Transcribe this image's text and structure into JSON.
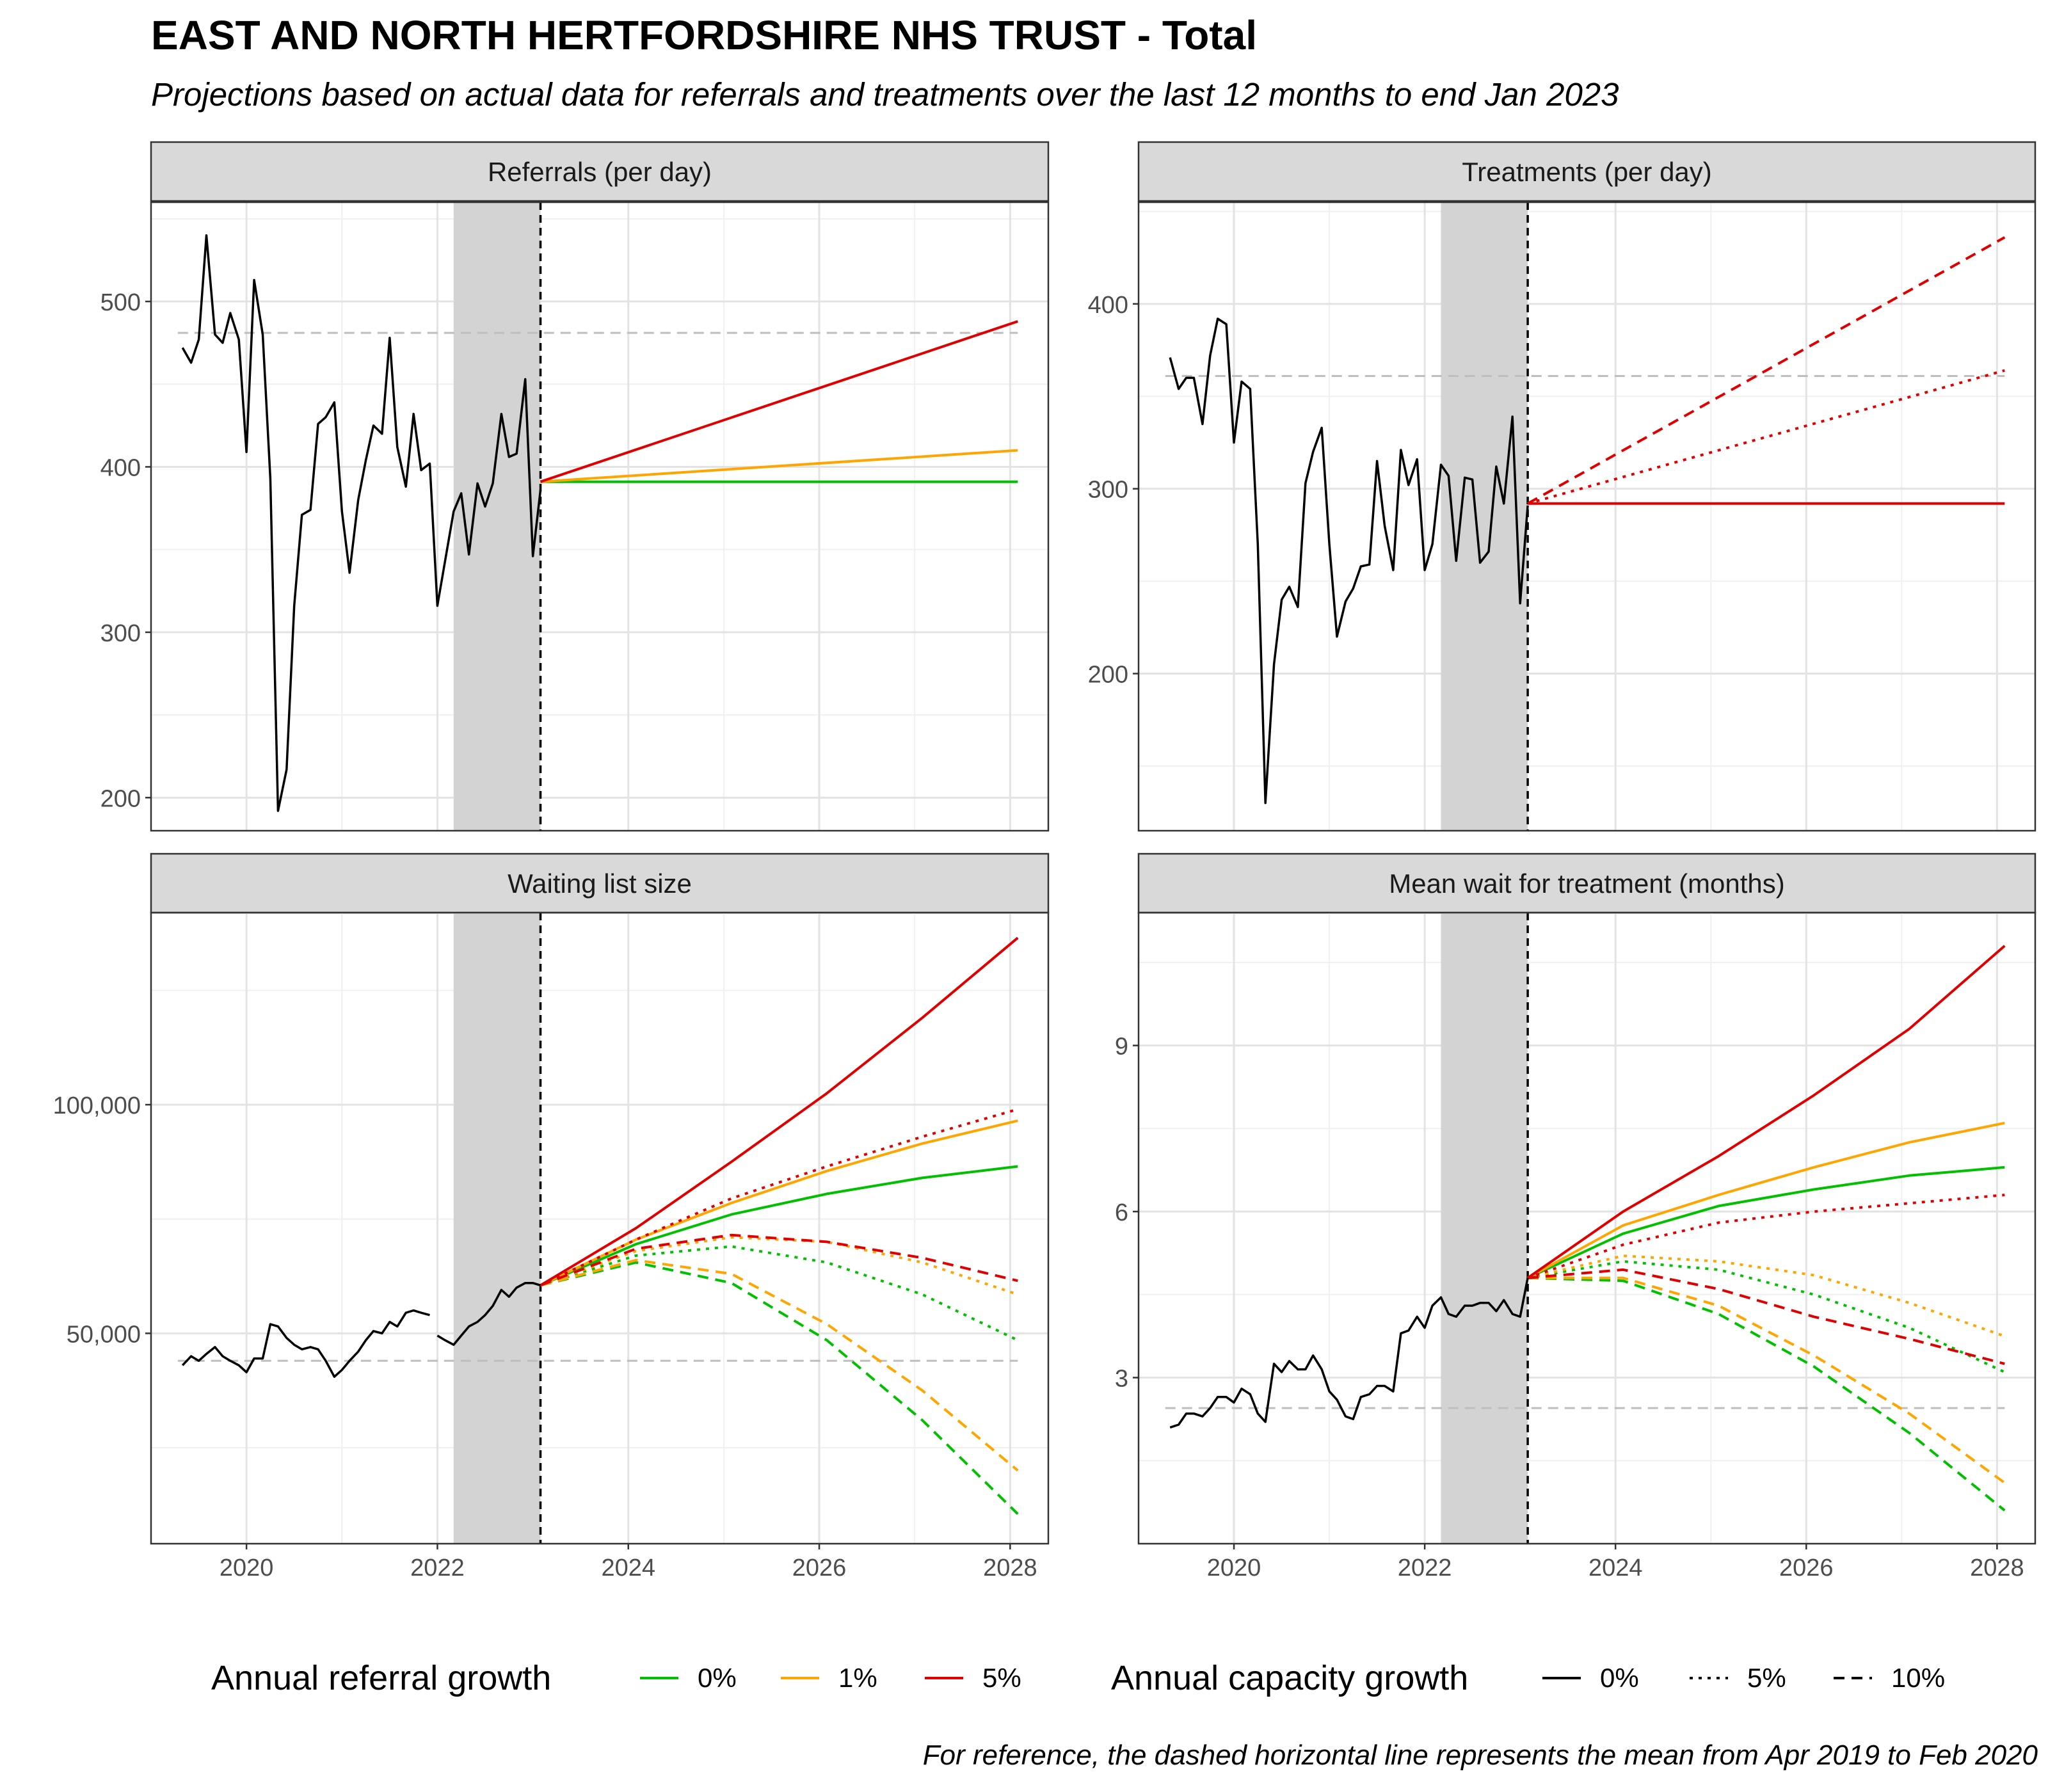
{
  "title": "EAST AND NORTH HERTFORDSHIRE NHS TRUST - Total",
  "subtitle": "Projections based on actual data for referrals and treatments over the last 12 months to end Jan 2023",
  "caption": "For reference, the dashed horizontal line represents the mean from Apr 2019 to Feb 2020",
  "colors": {
    "growth_0": "#00c000",
    "growth_1": "#ffa500",
    "growth_5": "#e00000",
    "actual": "#000000",
    "reference": "#bebebe",
    "strip": "#d9d9d9",
    "shade": "#d3d3d3"
  },
  "legend": {
    "referral_title": "Annual referral growth",
    "referral_items": [
      {
        "label": "0%",
        "color": "#00c000"
      },
      {
        "label": "1%",
        "color": "#ffa500"
      },
      {
        "label": "5%",
        "color": "#e00000"
      }
    ],
    "capacity_title": "Annual capacity growth",
    "capacity_items": [
      {
        "label": "0%",
        "style": "solid"
      },
      {
        "label": "5%",
        "style": "dotted"
      },
      {
        "label": "10%",
        "style": "dashed"
      }
    ]
  },
  "chart_data": [
    {
      "type": "line",
      "title": "Referrals (per day)",
      "x_ticks": [
        "2020",
        "2022",
        "2024",
        "2026",
        "2028"
      ],
      "y_ticks": [
        200,
        300,
        400,
        500
      ],
      "xlim": [
        2019.0,
        2028.4
      ],
      "ylim": [
        180,
        560
      ],
      "reference_line": 481,
      "shaded_region": [
        2022.17,
        2023.08
      ],
      "forecast_start": 2023.08,
      "actual": {
        "x": [
          2019.33,
          2019.42,
          2019.5,
          2019.58,
          2019.67,
          2019.75,
          2019.83,
          2019.92,
          2020.0,
          2020.08,
          2020.17,
          2020.25,
          2020.33,
          2020.42,
          2020.5,
          2020.58,
          2020.67,
          2020.75,
          2020.83,
          2020.92,
          2021.0,
          2021.08,
          2021.17,
          2021.25,
          2021.33,
          2021.42,
          2021.5,
          2021.58,
          2021.67,
          2021.75,
          2021.83,
          2021.92,
          2022.0,
          2022.08,
          2022.17,
          2022.25,
          2022.33,
          2022.42,
          2022.5,
          2022.58,
          2022.67,
          2022.75,
          2022.83,
          2022.92,
          2023.0,
          2023.08
        ],
        "y": [
          472,
          463,
          477,
          540,
          480,
          475,
          493,
          477,
          409,
          513,
          480,
          393,
          192,
          217,
          316,
          371,
          374,
          426,
          430,
          439,
          373,
          336,
          380,
          404,
          425,
          420,
          478,
          412,
          388,
          432,
          398,
          402,
          316,
          343,
          373,
          384,
          347,
          390,
          376,
          390,
          432,
          406,
          408,
          453,
          346,
          386
        ]
      },
      "series": [
        {
          "name": "0% referral growth",
          "color": "growth_0",
          "dash": "solid",
          "x": [
            2023.08,
            2028.08
          ],
          "y": [
            391,
            391
          ]
        },
        {
          "name": "1% referral growth",
          "color": "growth_1",
          "dash": "solid",
          "x": [
            2023.08,
            2028.08
          ],
          "y": [
            391,
            410
          ]
        },
        {
          "name": "5% referral growth",
          "color": "growth_5",
          "dash": "solid",
          "x": [
            2023.08,
            2028.08
          ],
          "y": [
            391,
            488
          ]
        }
      ]
    },
    {
      "type": "line",
      "title": "Treatments (per day)",
      "x_ticks": [
        "2020",
        "2022",
        "2024",
        "2026",
        "2028"
      ],
      "y_ticks": [
        200,
        300,
        400
      ],
      "xlim": [
        2019.0,
        2028.4
      ],
      "ylim": [
        115,
        455
      ],
      "reference_line": 361,
      "shaded_region": [
        2022.17,
        2023.08
      ],
      "forecast_start": 2023.08,
      "actual": {
        "x": [
          2019.33,
          2019.42,
          2019.5,
          2019.58,
          2019.67,
          2019.75,
          2019.83,
          2019.92,
          2020.0,
          2020.08,
          2020.17,
          2020.25,
          2020.33,
          2020.42,
          2020.5,
          2020.58,
          2020.67,
          2020.75,
          2020.83,
          2020.92,
          2021.0,
          2021.08,
          2021.17,
          2021.25,
          2021.33,
          2021.42,
          2021.5,
          2021.58,
          2021.67,
          2021.75,
          2021.83,
          2021.92,
          2022.0,
          2022.08,
          2022.17,
          2022.25,
          2022.33,
          2022.42,
          2022.5,
          2022.58,
          2022.67,
          2022.75,
          2022.83,
          2022.92,
          2023.0,
          2023.08
        ],
        "y": [
          371,
          354,
          360,
          360,
          335,
          372,
          392,
          389,
          325,
          358,
          354,
          270,
          130,
          205,
          240,
          247,
          236,
          303,
          320,
          333,
          270,
          220,
          239,
          246,
          258,
          259,
          315,
          280,
          256,
          321,
          302,
          316,
          256,
          270,
          313,
          307,
          261,
          306,
          305,
          260,
          266,
          312,
          292,
          339,
          238,
          291
        ]
      },
      "series": [
        {
          "name": "0% capacity growth",
          "color": "growth_5",
          "dash": "solid",
          "x": [
            2023.08,
            2028.08
          ],
          "y": [
            292,
            292
          ]
        },
        {
          "name": "5% capacity growth",
          "color": "growth_5",
          "dash": "dotted",
          "x": [
            2023.08,
            2028.08
          ],
          "y": [
            292,
            364
          ]
        },
        {
          "name": "10% capacity growth",
          "color": "growth_5",
          "dash": "dashed",
          "x": [
            2023.08,
            2028.08
          ],
          "y": [
            292,
            436
          ]
        }
      ]
    },
    {
      "type": "line",
      "title": "Waiting list size",
      "x_ticks": [
        "2020",
        "2022",
        "2024",
        "2026",
        "2028"
      ],
      "y_ticks": [
        50000,
        100000
      ],
      "y_tick_labels": [
        "50,000",
        "100,000"
      ],
      "xlim": [
        2019.0,
        2028.4
      ],
      "ylim": [
        4000,
        142000
      ],
      "reference_line": 44000,
      "shaded_region": [
        2022.17,
        2023.08
      ],
      "forecast_start": 2023.08,
      "actual": {
        "x": [
          2019.33,
          2019.42,
          2019.5,
          2019.58,
          2019.67,
          2019.75,
          2019.83,
          2019.92,
          2020.0,
          2020.08,
          2020.17,
          2020.25,
          2020.33,
          2020.42,
          2020.5,
          2020.58,
          2020.67,
          2020.75,
          2020.83,
          2020.92,
          2021.0,
          2021.08,
          2021.17,
          2021.25,
          2021.33,
          2021.42,
          2021.5,
          2021.58,
          2021.67,
          2021.75,
          2021.83,
          2021.92,
          null,
          2022.0,
          2022.08,
          2022.17,
          2022.25,
          2022.33,
          2022.42,
          2022.5,
          2022.58,
          2022.67,
          2022.75,
          2022.83,
          2022.92,
          2023.0,
          2023.08
        ],
        "y": [
          43000,
          45000,
          44000,
          45500,
          47000,
          45000,
          44000,
          43000,
          41500,
          44500,
          44500,
          52000,
          51500,
          49000,
          47500,
          46500,
          47000,
          46500,
          44000,
          40500,
          42000,
          44000,
          46000,
          48500,
          50500,
          50000,
          52500,
          51500,
          54500,
          55000,
          54500,
          54000,
          null,
          49500,
          48500,
          47500,
          49500,
          51500,
          52500,
          54000,
          56000,
          59500,
          58000,
          60000,
          61000,
          61000,
          60500
        ]
      },
      "series": [
        {
          "name": "0% referral, 0% capacity",
          "color": "growth_0",
          "dash": "solid",
          "x": [
            2023.08,
            2024.08,
            2025.08,
            2026.08,
            2027.08,
            2028.08
          ],
          "y": [
            60500,
            69500,
            76000,
            80500,
            84000,
            86500
          ]
        },
        {
          "name": "1% referral, 0% capacity",
          "color": "growth_1",
          "dash": "solid",
          "x": [
            2023.08,
            2024.08,
            2025.08,
            2026.08,
            2027.08,
            2028.08
          ],
          "y": [
            60500,
            70500,
            78500,
            85500,
            91500,
            96500
          ]
        },
        {
          "name": "5% referral, 0% capacity",
          "color": "growth_5",
          "dash": "solid",
          "x": [
            2023.08,
            2024.08,
            2025.08,
            2026.08,
            2027.08,
            2028.08
          ],
          "y": [
            60500,
            73000,
            87500,
            102500,
            119000,
            136500
          ]
        },
        {
          "name": "0% referral, 5% capacity",
          "color": "growth_0",
          "dash": "dotted",
          "x": [
            2023.08,
            2024.08,
            2025.08,
            2026.08,
            2027.08,
            2028.08
          ],
          "y": [
            60500,
            67000,
            69000,
            65500,
            58500,
            48500
          ]
        },
        {
          "name": "1% referral, 5% capacity",
          "color": "growth_1",
          "dash": "dotted",
          "x": [
            2023.08,
            2024.08,
            2025.08,
            2026.08,
            2027.08,
            2028.08
          ],
          "y": [
            60500,
            68000,
            71000,
            70000,
            65500,
            58500
          ]
        },
        {
          "name": "5% referral, 5% capacity",
          "color": "growth_5",
          "dash": "dotted",
          "x": [
            2023.08,
            2024.08,
            2025.08,
            2026.08,
            2027.08,
            2028.08
          ],
          "y": [
            60500,
            70500,
            79500,
            86500,
            93000,
            99000
          ]
        },
        {
          "name": "0% referral, 10% capacity",
          "color": "growth_0",
          "dash": "dashed",
          "x": [
            2023.08,
            2024.08,
            2025.08,
            2026.08,
            2027.08,
            2028.08
          ],
          "y": [
            60500,
            65500,
            61000,
            48500,
            31000,
            10500
          ]
        },
        {
          "name": "1% referral, 10% capacity",
          "color": "growth_1",
          "dash": "dashed",
          "x": [
            2023.08,
            2024.08,
            2025.08,
            2026.08,
            2027.08,
            2028.08
          ],
          "y": [
            60500,
            66000,
            63000,
            52000,
            37500,
            20000
          ]
        },
        {
          "name": "5% referral, 10% capacity",
          "color": "growth_5",
          "dash": "dashed",
          "x": [
            2023.08,
            2024.08,
            2025.08,
            2026.08,
            2027.08,
            2028.08
          ],
          "y": [
            60500,
            68500,
            71500,
            70000,
            66500,
            61500
          ]
        }
      ]
    },
    {
      "type": "line",
      "title": "Mean wait for treatment (months)",
      "x_ticks": [
        "2020",
        "2022",
        "2024",
        "2026",
        "2028"
      ],
      "y_ticks": [
        3,
        6,
        9
      ],
      "xlim": [
        2019.0,
        2028.4
      ],
      "ylim": [
        0.0,
        11.4
      ],
      "reference_line": 2.45,
      "shaded_region": [
        2022.17,
        2023.08
      ],
      "forecast_start": 2023.08,
      "actual": {
        "x": [
          2019.33,
          2019.42,
          2019.5,
          2019.58,
          2019.67,
          2019.75,
          2019.83,
          2019.92,
          2020.0,
          2020.08,
          2020.17,
          2020.25,
          2020.33,
          2020.42,
          2020.5,
          2020.58,
          2020.67,
          2020.75,
          2020.83,
          2020.92,
          2021.0,
          2021.08,
          2021.17,
          2021.25,
          2021.33,
          2021.42,
          2021.5,
          2021.58,
          2021.67,
          2021.75,
          2021.83,
          2021.92,
          2022.0,
          2022.08,
          2022.17,
          2022.25,
          2022.33,
          2022.42,
          2022.5,
          2022.58,
          2022.67,
          2022.75,
          2022.83,
          2022.92,
          2023.0,
          2023.08
        ],
        "y": [
          2.1,
          2.15,
          2.35,
          2.35,
          2.3,
          2.45,
          2.65,
          2.65,
          2.55,
          2.8,
          2.7,
          2.35,
          2.2,
          3.25,
          3.1,
          3.3,
          3.15,
          3.15,
          3.4,
          3.15,
          2.75,
          2.6,
          2.3,
          2.25,
          2.65,
          2.7,
          2.85,
          2.85,
          2.75,
          3.8,
          3.85,
          4.1,
          3.9,
          4.3,
          4.45,
          4.15,
          4.1,
          4.3,
          4.3,
          4.35,
          4.35,
          4.2,
          4.4,
          4.15,
          4.1,
          4.8
        ]
      },
      "series": [
        {
          "name": "0% referral, 0% capacity",
          "color": "growth_0",
          "dash": "solid",
          "x": [
            2023.08,
            2024.08,
            2025.08,
            2026.08,
            2027.08,
            2028.08
          ],
          "y": [
            4.8,
            5.6,
            6.1,
            6.4,
            6.65,
            6.8
          ]
        },
        {
          "name": "1% referral, 0% capacity",
          "color": "growth_1",
          "dash": "solid",
          "x": [
            2023.08,
            2024.08,
            2025.08,
            2026.08,
            2027.08,
            2028.08
          ],
          "y": [
            4.8,
            5.75,
            6.3,
            6.8,
            7.25,
            7.6
          ]
        },
        {
          "name": "5% referral, 0% capacity",
          "color": "growth_5",
          "dash": "solid",
          "x": [
            2023.08,
            2024.08,
            2025.08,
            2026.08,
            2027.08,
            2028.08
          ],
          "y": [
            4.8,
            6.0,
            7.0,
            8.1,
            9.3,
            10.8
          ]
        },
        {
          "name": "0% referral, 5% capacity",
          "color": "growth_0",
          "dash": "dotted",
          "x": [
            2023.08,
            2024.08,
            2025.08,
            2026.08,
            2027.08,
            2028.08
          ],
          "y": [
            4.8,
            5.1,
            4.95,
            4.5,
            3.9,
            3.1
          ]
        },
        {
          "name": "1% referral, 5% capacity",
          "color": "growth_1",
          "dash": "dotted",
          "x": [
            2023.08,
            2024.08,
            2025.08,
            2026.08,
            2027.08,
            2028.08
          ],
          "y": [
            4.8,
            5.2,
            5.1,
            4.85,
            4.35,
            3.75
          ]
        },
        {
          "name": "5% referral, 5% capacity",
          "color": "growth_5",
          "dash": "dotted",
          "x": [
            2023.08,
            2024.08,
            2025.08,
            2026.08,
            2027.08,
            2028.08
          ],
          "y": [
            4.8,
            5.4,
            5.8,
            6.0,
            6.15,
            6.3
          ]
        },
        {
          "name": "0% referral, 10% capacity",
          "color": "growth_0",
          "dash": "dashed",
          "x": [
            2023.08,
            2024.08,
            2025.08,
            2026.08,
            2027.08,
            2028.08
          ],
          "y": [
            4.8,
            4.75,
            4.15,
            3.2,
            2.0,
            0.6
          ]
        },
        {
          "name": "1% referral, 10% capacity",
          "color": "growth_1",
          "dash": "dashed",
          "x": [
            2023.08,
            2024.08,
            2025.08,
            2026.08,
            2027.08,
            2028.08
          ],
          "y": [
            4.8,
            4.8,
            4.3,
            3.4,
            2.35,
            1.1
          ]
        },
        {
          "name": "5% referral, 10% capacity",
          "color": "growth_5",
          "dash": "dashed",
          "x": [
            2023.08,
            2024.08,
            2025.08,
            2026.08,
            2027.08,
            2028.08
          ],
          "y": [
            4.8,
            4.95,
            4.6,
            4.1,
            3.7,
            3.25
          ]
        }
      ]
    }
  ]
}
